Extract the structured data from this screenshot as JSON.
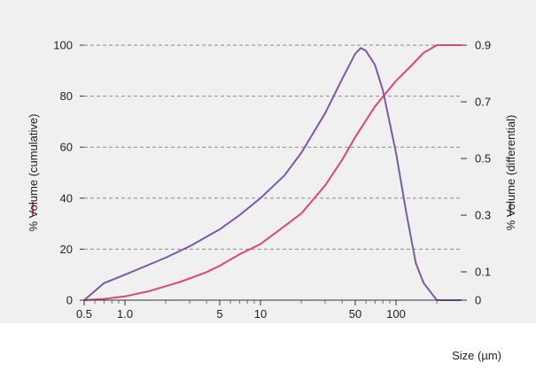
{
  "chart_data": {
    "type": "line",
    "xscale": "log",
    "xlim": [
      0.5,
      300
    ],
    "xticks": [
      0.5,
      1,
      5,
      10,
      50,
      100
    ],
    "xtick_labels": [
      "0.5",
      "1.0",
      "5",
      "10",
      "50",
      "100"
    ],
    "xlabel": "Size (µm)",
    "y_left": {
      "label": "% Volume (cumulative)",
      "range": [
        0,
        100
      ],
      "ticks": [
        0,
        20,
        40,
        60,
        80,
        100
      ],
      "tick_labels": [
        "0",
        "20",
        "40",
        "60",
        "80",
        "100"
      ]
    },
    "y_right": {
      "label": "% Volume (differential)",
      "range": [
        0,
        0.9
      ],
      "ticks": [
        0,
        0.1,
        0.3,
        0.5,
        0.7,
        0.9
      ],
      "tick_labels": [
        "0",
        "0.1",
        "0.3",
        "0.5",
        "0.7",
        "0.9"
      ]
    },
    "grid": true,
    "series": [
      {
        "name": "% Volume (cumulative)",
        "axis": "left",
        "color": "#e0457a",
        "x": [
          0.5,
          0.7,
          1,
          1.5,
          2,
          2.5,
          3,
          4,
          5,
          7,
          10,
          15,
          20,
          30,
          40,
          50,
          70,
          100,
          130,
          160,
          200,
          250,
          300
        ],
        "y": [
          0,
          0.5,
          1.5,
          3.5,
          5.5,
          7,
          8.5,
          11,
          13.5,
          18,
          22,
          29,
          34,
          45,
          55,
          64,
          76,
          86,
          92,
          97,
          100,
          100,
          100
        ]
      },
      {
        "name": "% Volume (differential)",
        "axis": "right",
        "color": "#7a5aa8",
        "x": [
          0.5,
          0.7,
          1,
          1.5,
          2,
          3,
          5,
          7,
          10,
          15,
          20,
          30,
          40,
          50,
          55,
          60,
          70,
          80,
          100,
          120,
          140,
          160,
          200,
          250,
          300
        ],
        "y": [
          0,
          0.06,
          0.09,
          0.125,
          0.15,
          0.19,
          0.25,
          0.3,
          0.36,
          0.44,
          0.52,
          0.66,
          0.78,
          0.87,
          0.89,
          0.88,
          0.83,
          0.74,
          0.52,
          0.3,
          0.13,
          0.06,
          0,
          0,
          0
        ]
      }
    ]
  }
}
